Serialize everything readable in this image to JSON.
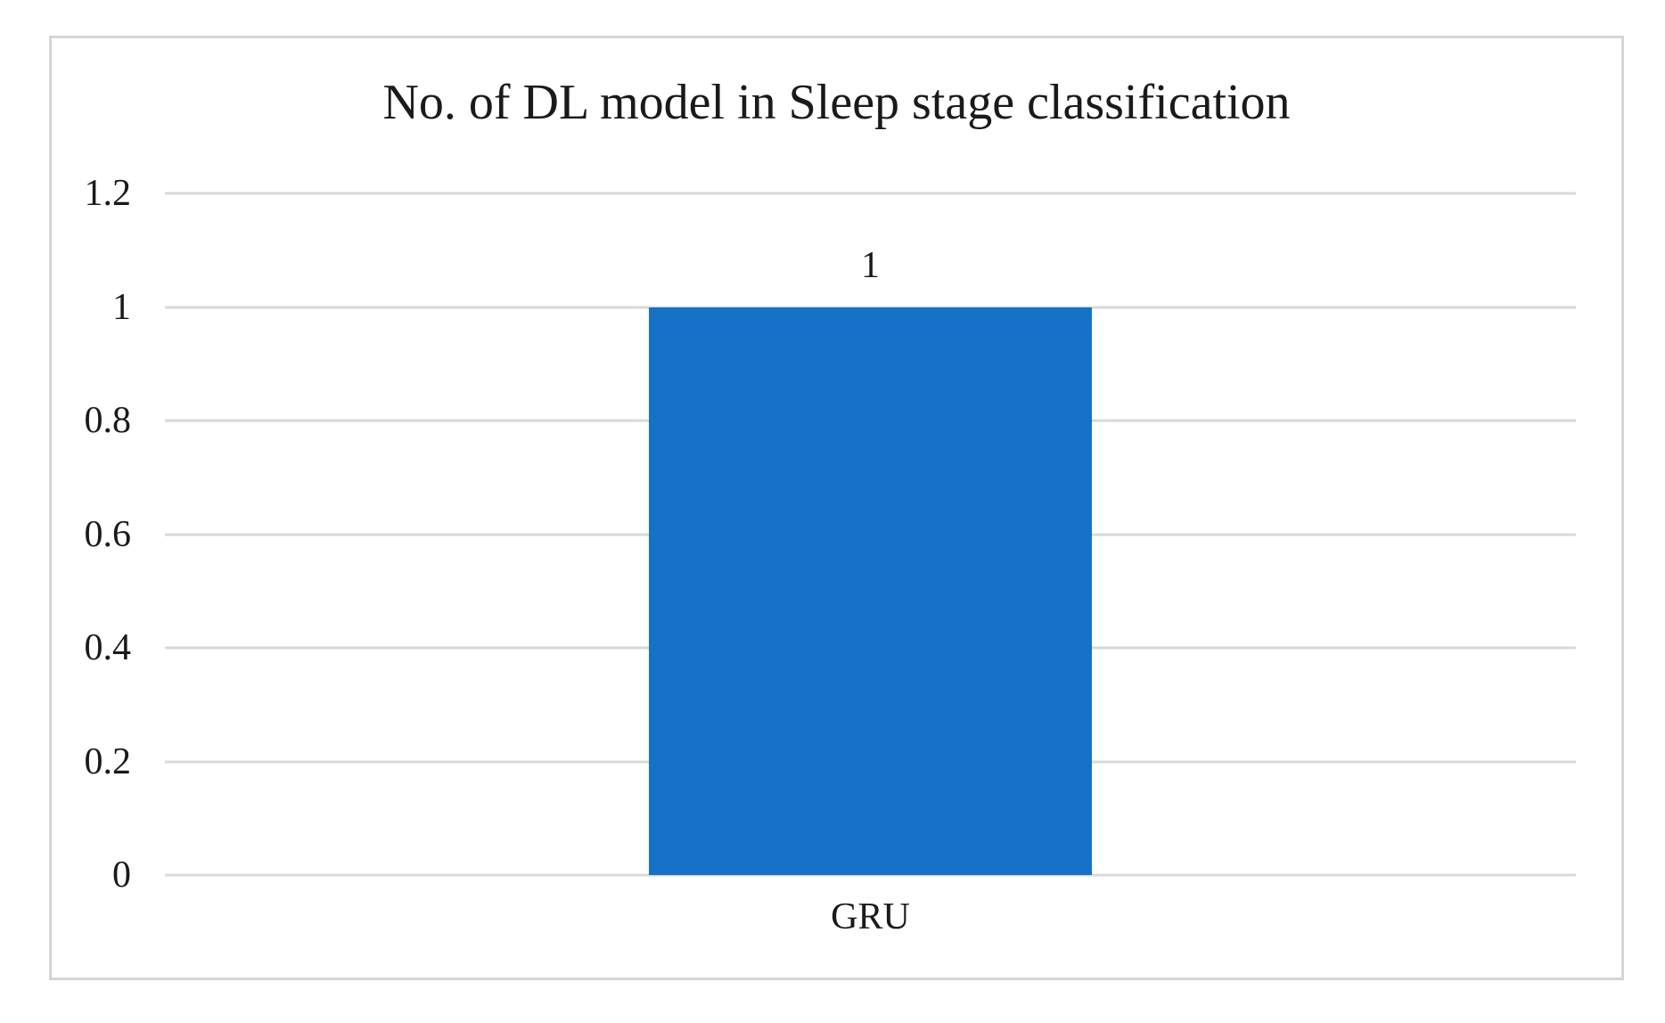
{
  "figure": {
    "background": "#ffffff"
  },
  "chart_data": {
    "type": "bar",
    "title": "No. of DL model in Sleep stage classification",
    "categories": [
      "GRU"
    ],
    "values": [
      1
    ],
    "data_labels": [
      "1"
    ],
    "series": [
      {
        "name": "No. of DL model",
        "values": [
          1
        ]
      }
    ],
    "xlabel": "",
    "ylabel": "",
    "ylim": [
      0,
      1.2
    ],
    "yticks": [
      0,
      0.2,
      0.4,
      0.6,
      0.8,
      1,
      1.2
    ],
    "ytick_labels": [
      "0",
      "0.2",
      "0.4",
      "0.6",
      "0.8",
      "1",
      "1.2"
    ],
    "grid": "horizontal",
    "legend_position": "none",
    "bar_color": "#1672c6",
    "gridline_color": "#d9d9d9",
    "axis_line_color": "#d9d9d9",
    "frame_border_color": "#d6d6d6",
    "text_color": "#1a1a1a"
  }
}
